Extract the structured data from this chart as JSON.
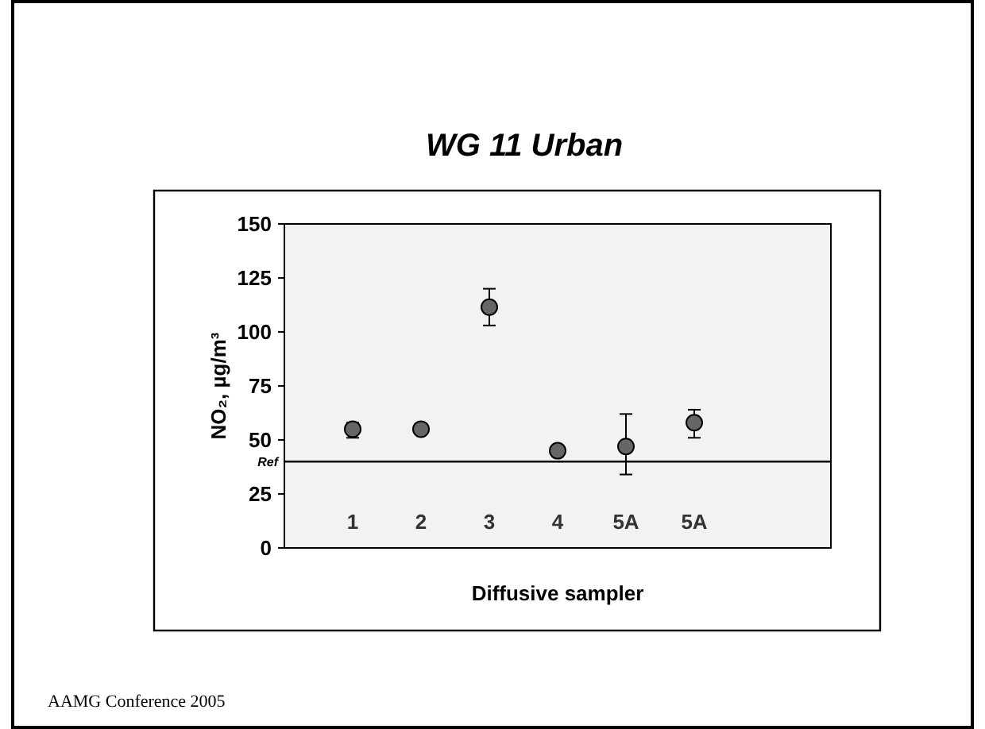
{
  "chart_data": {
    "type": "scatter",
    "title": "WG 11 Urban",
    "xlabel": "Diffusive sampler",
    "ylabel": "NO₂, µg/m³",
    "annotations": [
      "AAMG Conference 2005"
    ],
    "categories": [
      "1",
      "2",
      "3",
      "4",
      "5A",
      "5A"
    ],
    "series": [
      {
        "color": "#666666",
        "values": [
          55,
          55,
          111.5,
          45,
          47,
          58
        ],
        "errors": [
          [
            51,
            58
          ],
          [
            54,
            56
          ],
          [
            103,
            120
          ],
          null,
          [
            34,
            62
          ],
          [
            51,
            64
          ]
        ]
      }
    ],
    "ylim": [
      0,
      150
    ],
    "yticks": [
      0,
      25,
      50,
      75,
      100,
      125,
      150
    ],
    "ref_lines": [
      {
        "axis": "y",
        "value": 40,
        "label": "Ref",
        "color": "#000000"
      }
    ],
    "grid": false,
    "marker": "circle"
  }
}
